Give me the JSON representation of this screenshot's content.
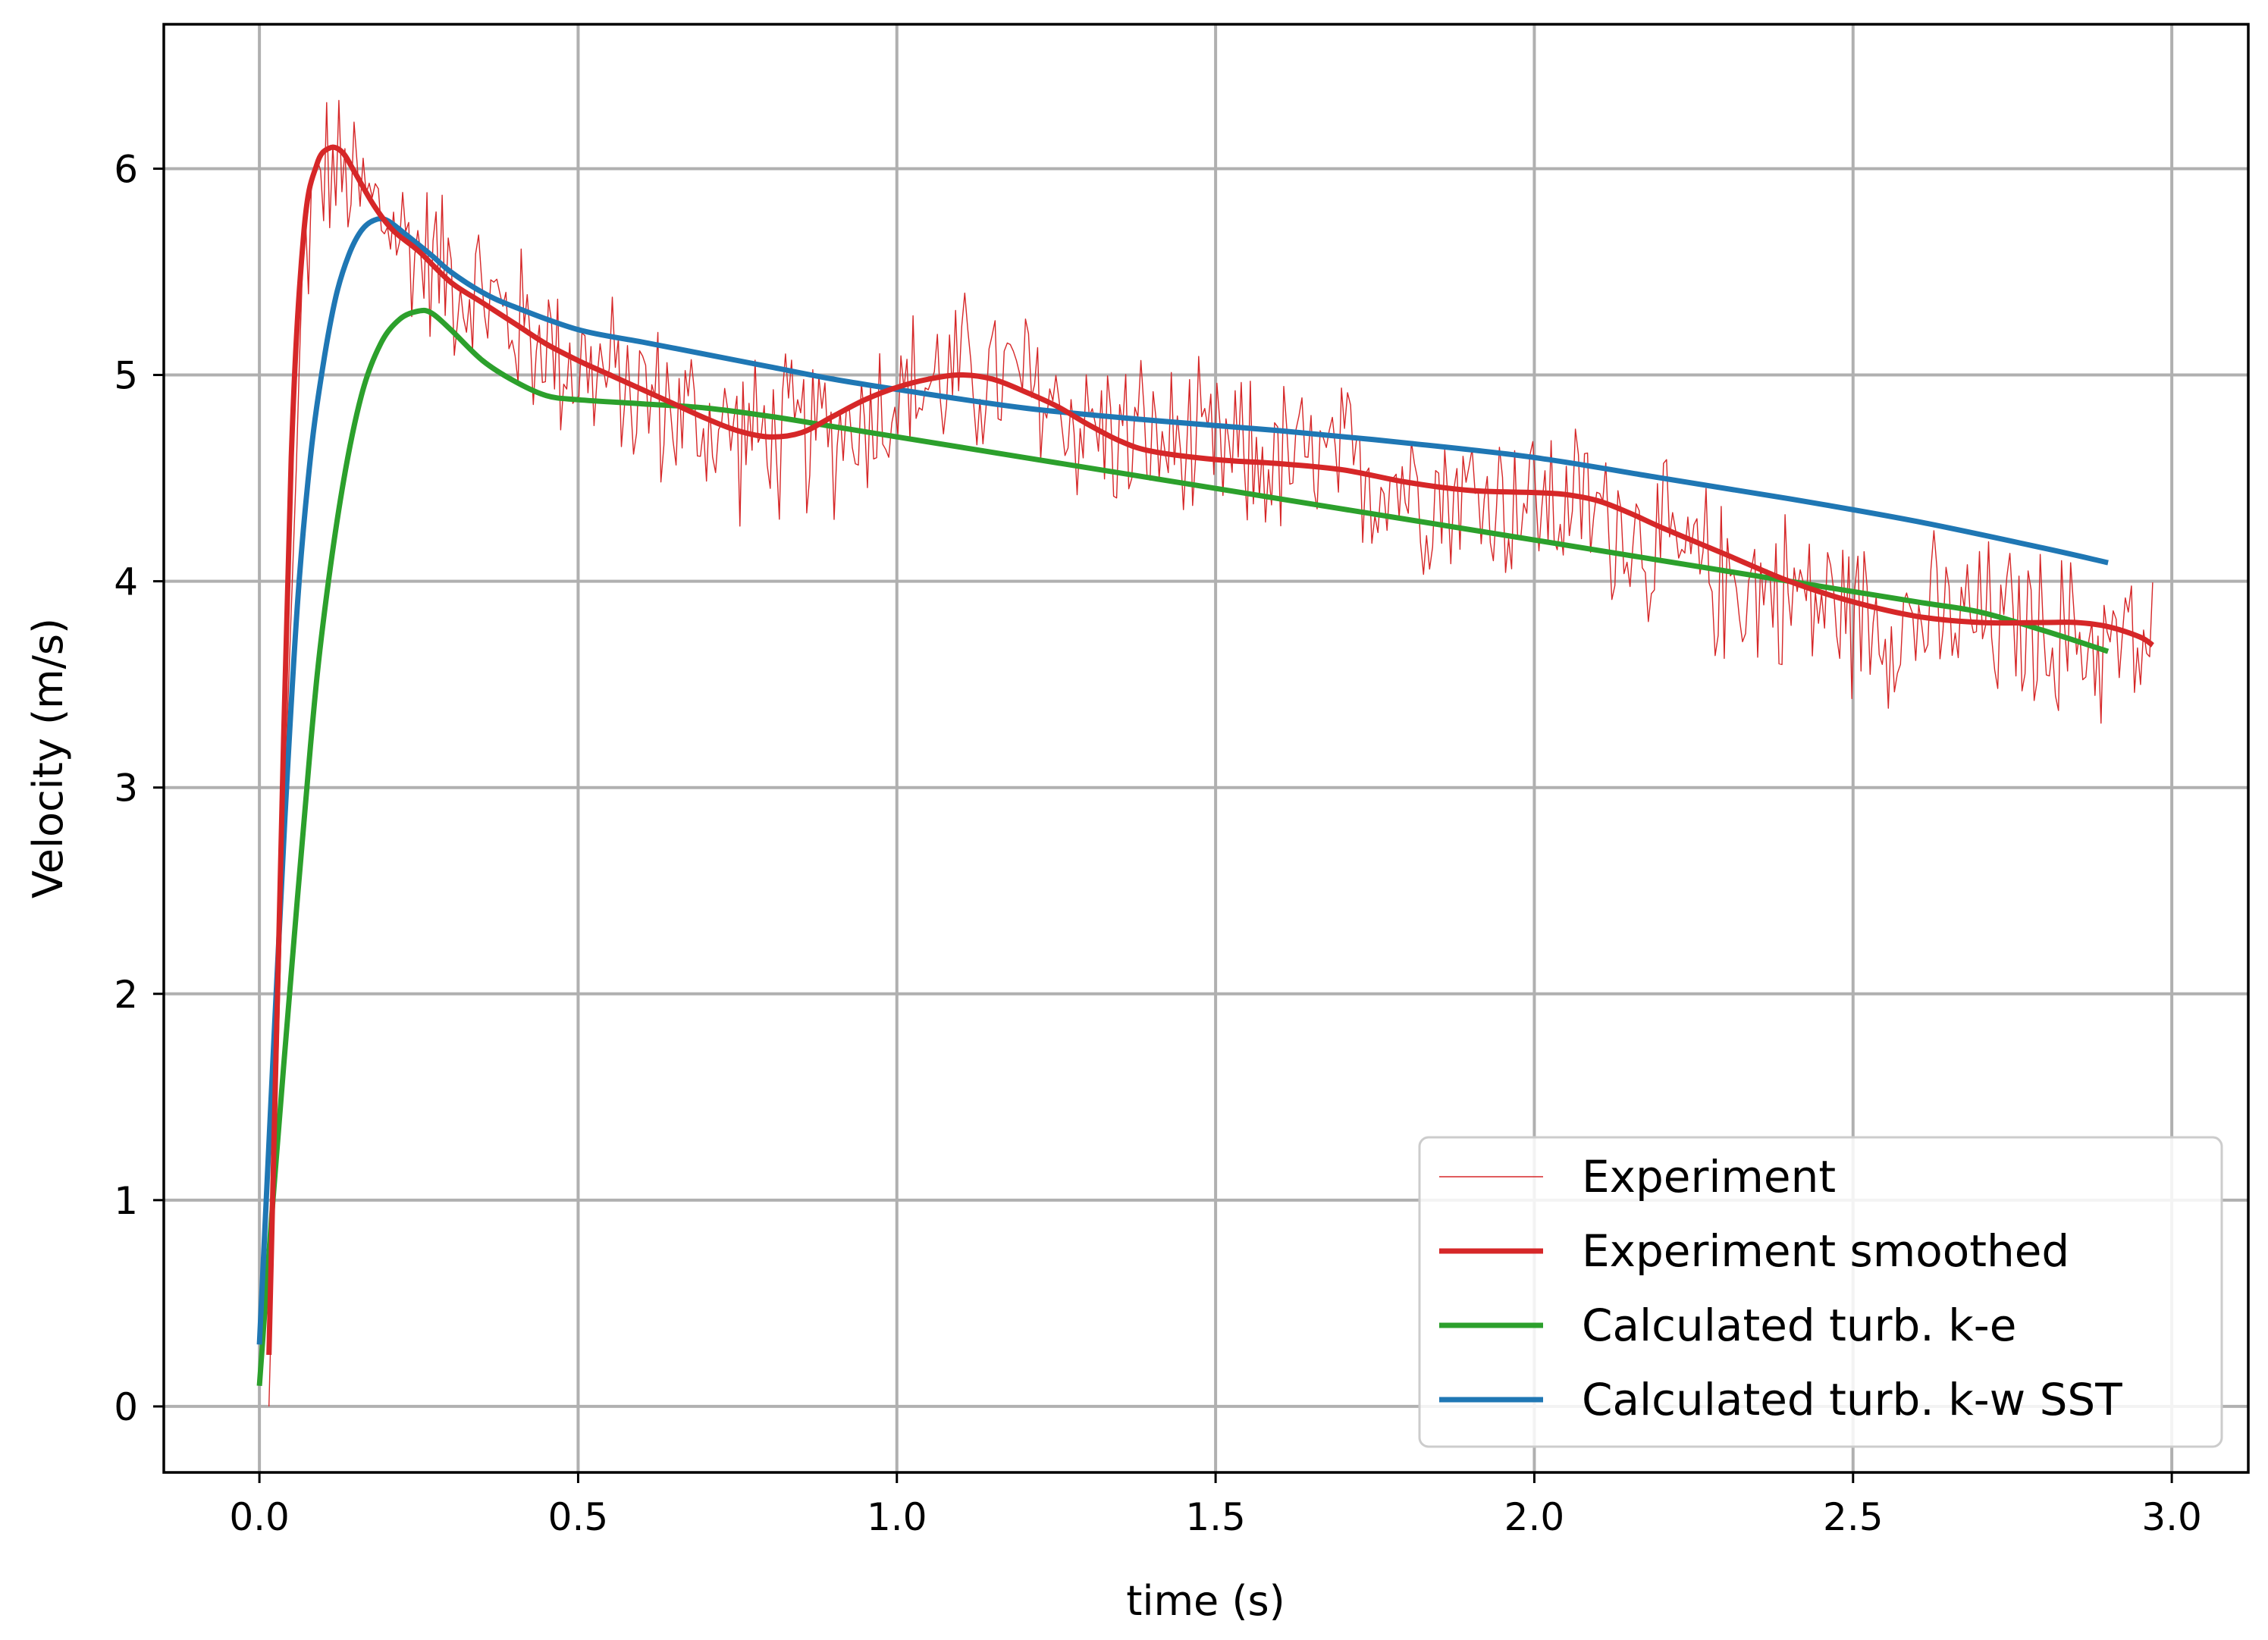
{
  "chart_data": {
    "type": "line",
    "title": "",
    "xlabel": "time (s)",
    "ylabel": "Velocity (m/s)",
    "xlim": [
      -0.15,
      3.12
    ],
    "ylim": [
      -0.32,
      6.7
    ],
    "grid": true,
    "legend_position": "lower-right",
    "xticks": [
      0.0,
      0.5,
      1.0,
      1.5,
      2.0,
      2.5,
      3.0
    ],
    "xtick_labels": [
      "0.0",
      "0.5",
      "1.0",
      "1.5",
      "2.0",
      "2.5",
      "3.0"
    ],
    "yticks": [
      0,
      1,
      2,
      3,
      4,
      5,
      6
    ],
    "ytick_labels": [
      "0",
      "1",
      "2",
      "3",
      "4",
      "5",
      "6"
    ],
    "series": [
      {
        "name": "Experiment",
        "color": "#d62728",
        "style": "thin-noisy",
        "x_start": 0.015,
        "x_end": 2.97,
        "trend_x": [
          0.015,
          0.04,
          0.07,
          0.1,
          0.15,
          0.2,
          0.25,
          0.3,
          0.4,
          0.5,
          0.6,
          0.7,
          0.8,
          0.9,
          1.0,
          1.1,
          1.2,
          1.3,
          1.5,
          1.7,
          1.9,
          2.1,
          2.2,
          2.3,
          2.4,
          2.5,
          2.6,
          2.7,
          2.8,
          2.9,
          2.97
        ],
        "trend_y": [
          0.0,
          3.0,
          5.6,
          6.0,
          5.9,
          5.75,
          5.6,
          5.5,
          5.25,
          5.05,
          4.9,
          4.75,
          4.68,
          4.72,
          4.9,
          5.0,
          4.95,
          4.75,
          4.6,
          4.55,
          4.42,
          4.35,
          4.15,
          4.0,
          3.95,
          3.85,
          3.8,
          3.8,
          3.75,
          3.7,
          3.65
        ],
        "noise_amplitude": 0.35
      },
      {
        "name": "Experiment smoothed",
        "color": "#d62728",
        "x": [
          0.015,
          0.03,
          0.05,
          0.07,
          0.09,
          0.11,
          0.13,
          0.15,
          0.18,
          0.21,
          0.25,
          0.3,
          0.35,
          0.4,
          0.45,
          0.5,
          0.55,
          0.6,
          0.65,
          0.7,
          0.75,
          0.8,
          0.85,
          0.9,
          0.95,
          1.0,
          1.05,
          1.1,
          1.15,
          1.2,
          1.25,
          1.3,
          1.35,
          1.4,
          1.5,
          1.6,
          1.7,
          1.8,
          1.9,
          2.0,
          2.05,
          2.1,
          2.15,
          2.2,
          2.3,
          2.4,
          2.5,
          2.6,
          2.7,
          2.8,
          2.85,
          2.9,
          2.95,
          2.97
        ],
        "y": [
          0.25,
          2.2,
          4.6,
          5.7,
          6.02,
          6.1,
          6.08,
          5.98,
          5.82,
          5.7,
          5.6,
          5.45,
          5.35,
          5.25,
          5.15,
          5.07,
          5.0,
          4.93,
          4.86,
          4.79,
          4.73,
          4.7,
          4.72,
          4.8,
          4.88,
          4.94,
          4.98,
          5.0,
          4.98,
          4.92,
          4.85,
          4.76,
          4.68,
          4.63,
          4.59,
          4.57,
          4.54,
          4.48,
          4.44,
          4.43,
          4.42,
          4.39,
          4.33,
          4.26,
          4.13,
          4.0,
          3.9,
          3.83,
          3.8,
          3.8,
          3.8,
          3.78,
          3.73,
          3.69
        ]
      },
      {
        "name": "Calculated turb. k-e",
        "color": "#2ca02c",
        "x": [
          0.0,
          0.02,
          0.05,
          0.08,
          0.1,
          0.13,
          0.16,
          0.19,
          0.22,
          0.25,
          0.27,
          0.3,
          0.35,
          0.4,
          0.45,
          0.5,
          0.6,
          0.7,
          0.8,
          0.9,
          1.0,
          1.2,
          1.4,
          1.6,
          1.8,
          2.0,
          2.2,
          2.4,
          2.6,
          2.7,
          2.8,
          2.9
        ],
        "y": [
          0.1,
          0.95,
          2.1,
          3.2,
          3.8,
          4.45,
          4.9,
          5.15,
          5.27,
          5.31,
          5.3,
          5.22,
          5.07,
          4.97,
          4.9,
          4.88,
          4.86,
          4.84,
          4.8,
          4.75,
          4.7,
          4.6,
          4.5,
          4.4,
          4.3,
          4.2,
          4.1,
          4.0,
          3.9,
          3.85,
          3.76,
          3.66
        ]
      },
      {
        "name": "Calculated turb. k-w SST",
        "color": "#1f77b4",
        "x": [
          0.0,
          0.02,
          0.04,
          0.06,
          0.08,
          0.1,
          0.12,
          0.14,
          0.16,
          0.18,
          0.2,
          0.23,
          0.27,
          0.3,
          0.35,
          0.4,
          0.5,
          0.6,
          0.7,
          0.8,
          0.9,
          1.0,
          1.2,
          1.4,
          1.6,
          1.8,
          2.0,
          2.2,
          2.4,
          2.6,
          2.8,
          2.9
        ],
        "y": [
          0.3,
          1.6,
          2.85,
          3.9,
          4.6,
          5.05,
          5.38,
          5.58,
          5.7,
          5.75,
          5.75,
          5.68,
          5.58,
          5.5,
          5.4,
          5.33,
          5.22,
          5.16,
          5.1,
          5.04,
          4.98,
          4.93,
          4.84,
          4.78,
          4.73,
          4.67,
          4.6,
          4.5,
          4.4,
          4.29,
          4.16,
          4.09
        ]
      }
    ]
  }
}
